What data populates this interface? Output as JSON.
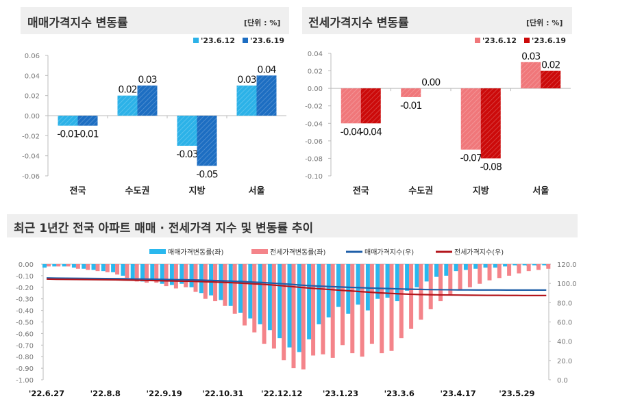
{
  "chart_data": [
    {
      "type": "bar",
      "title": "매매가격지수 변동률",
      "unit": "[단위 : %]",
      "categories": [
        "전국",
        "수도권",
        "지방",
        "서울"
      ],
      "series": [
        {
          "name": "'23.6.12",
          "values": [
            -0.01,
            0.02,
            -0.03,
            0.03
          ],
          "color": "#2cb2e8"
        },
        {
          "name": "'23.6.19",
          "values": [
            -0.01,
            0.03,
            -0.05,
            0.04
          ],
          "color": "#1d6ec2"
        }
      ],
      "ylim": [
        -0.06,
        0.06
      ],
      "yticks": [
        "0.06",
        "0.04",
        "0.02",
        "0.00",
        "-0.02",
        "-0.04",
        "-0.06"
      ],
      "legend": "top-right"
    },
    {
      "type": "bar",
      "title": "전세가격지수 변동률",
      "unit": "[단위 : %]",
      "categories": [
        "전국",
        "수도권",
        "지방",
        "서울"
      ],
      "series": [
        {
          "name": "'23.6.12",
          "values": [
            -0.04,
            -0.01,
            -0.07,
            0.03
          ],
          "color": "#f0777a"
        },
        {
          "name": "'23.6.19",
          "values": [
            -0.04,
            0.0,
            -0.08,
            0.02
          ],
          "color": "#cc0a0a"
        }
      ],
      "ylim": [
        -0.1,
        0.04
      ],
      "yticks": [
        "0.04",
        "0.02",
        "0.00",
        "-0.02",
        "-0.04",
        "-0.06",
        "-0.08",
        "-0.10"
      ],
      "legend": "top-right"
    },
    {
      "type": "bar+line",
      "title": "최근 1년간 전국 아파트 매매 · 전세가격 지수 및 변동률 추이",
      "xticks": [
        "'22.6.27",
        "'22.8.8",
        "'22.9.19",
        "'22.10.31",
        "'22.12.12",
        "'23.1.23",
        "'23.3.6",
        "'23.4.17",
        "'23.5.29"
      ],
      "ylim_left": [
        -1.0,
        0.0
      ],
      "yticks_left": [
        "0.00",
        "-0.10",
        "-0.20",
        "-0.30",
        "-0.40",
        "-0.50",
        "-0.60",
        "-0.70",
        "-0.80",
        "-0.90",
        "-1.00"
      ],
      "ylim_right": [
        0,
        120
      ],
      "yticks_right": [
        "120.0",
        "100.0",
        "80.0",
        "60.0",
        "40.0",
        "20.0",
        "0.0"
      ],
      "legend": "top",
      "series": [
        {
          "name": "매매가격변동률(좌)",
          "kind": "bar",
          "axis": "left",
          "color": "#2ab8ee",
          "values": [
            -0.03,
            -0.02,
            -0.02,
            -0.03,
            -0.04,
            -0.05,
            -0.06,
            -0.07,
            -0.1,
            -0.13,
            -0.15,
            -0.14,
            -0.17,
            -0.18,
            -0.17,
            -0.2,
            -0.25,
            -0.27,
            -0.31,
            -0.36,
            -0.42,
            -0.47,
            -0.52,
            -0.57,
            -0.64,
            -0.72,
            -0.76,
            -0.65,
            -0.52,
            -0.46,
            -0.37,
            -0.43,
            -0.35,
            -0.4,
            -0.3,
            -0.29,
            -0.32,
            -0.23,
            -0.2,
            -0.15,
            -0.11,
            -0.1,
            -0.06,
            -0.05,
            -0.04,
            -0.03,
            -0.03,
            -0.02,
            -0.01,
            -0.01,
            -0.01,
            -0.01
          ]
        },
        {
          "name": "전세가격변동률(좌)",
          "kind": "bar",
          "axis": "left",
          "color": "#f4848a",
          "values": [
            -0.02,
            -0.02,
            -0.02,
            -0.04,
            -0.05,
            -0.06,
            -0.07,
            -0.09,
            -0.12,
            -0.15,
            -0.16,
            -0.16,
            -0.19,
            -0.21,
            -0.2,
            -0.24,
            -0.3,
            -0.32,
            -0.36,
            -0.43,
            -0.53,
            -0.59,
            -0.69,
            -0.73,
            -0.83,
            -0.9,
            -0.91,
            -0.79,
            -0.78,
            -0.81,
            -0.7,
            -0.77,
            -0.8,
            -0.69,
            -0.77,
            -0.75,
            -0.64,
            -0.56,
            -0.48,
            -0.39,
            -0.32,
            -0.26,
            -0.22,
            -0.2,
            -0.17,
            -0.14,
            -0.12,
            -0.1,
            -0.08,
            -0.06,
            -0.05,
            -0.04
          ]
        },
        {
          "name": "매매가격지수(우)",
          "kind": "line",
          "axis": "right",
          "color": "#1f5fa8",
          "values": [
            105.6,
            105.5,
            105.4,
            105.3,
            105.2,
            105.1,
            105.0,
            104.9,
            104.8,
            104.6,
            104.5,
            104.3,
            104.1,
            103.9,
            103.8,
            103.6,
            103.3,
            103.0,
            102.7,
            102.3,
            101.9,
            101.4,
            100.9,
            100.3,
            99.7,
            99.0,
            98.2,
            97.6,
            97.1,
            96.7,
            96.3,
            95.9,
            95.6,
            95.2,
            94.9,
            94.6,
            94.3,
            94.0,
            93.8,
            93.6,
            93.5,
            93.4,
            93.3,
            93.3,
            93.2,
            93.2,
            93.2,
            93.1,
            93.1,
            93.1,
            93.1,
            93.1
          ]
        },
        {
          "name": "전세가격지수(우)",
          "kind": "line",
          "axis": "right",
          "color": "#b3161c",
          "values": [
            104.5,
            104.3,
            104.2,
            104.1,
            104.0,
            103.9,
            103.8,
            103.7,
            103.5,
            103.3,
            103.1,
            102.9,
            102.7,
            102.5,
            102.3,
            102.1,
            101.8,
            101.5,
            101.1,
            100.7,
            100.2,
            99.7,
            99.1,
            98.4,
            97.6,
            96.7,
            95.8,
            95.0,
            94.3,
            93.6,
            92.9,
            92.2,
            91.5,
            90.9,
            90.2,
            89.7,
            89.2,
            88.8,
            88.5,
            88.3,
            88.1,
            88.0,
            87.9,
            87.8,
            87.7,
            87.6,
            87.6,
            87.5,
            87.5,
            87.4,
            87.4,
            87.4
          ]
        }
      ]
    }
  ]
}
